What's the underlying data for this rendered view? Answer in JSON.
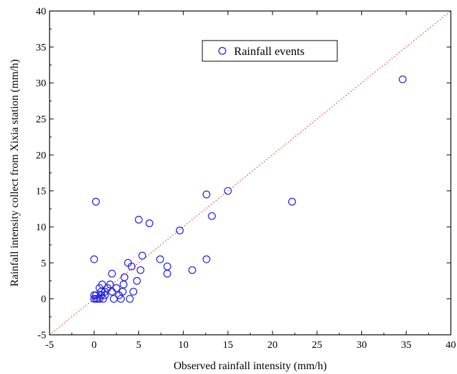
{
  "chart_data": {
    "type": "scatter",
    "title": "",
    "xlabel": "Observed rainfall intensity (mm/h)",
    "ylabel": "Rainfall intensity collect from Xixia station (mm/h)",
    "xlim": [
      -5,
      40
    ],
    "ylim": [
      -5,
      40
    ],
    "xticks": [
      -5,
      0,
      5,
      10,
      15,
      20,
      25,
      30,
      35,
      40
    ],
    "yticks": [
      -5,
      0,
      5,
      10,
      15,
      20,
      25,
      30,
      35,
      40
    ],
    "grid": false,
    "legend_position": "top-center",
    "reference_line": {
      "style": "dotted",
      "color": "#e03030",
      "from": [
        -5,
        -5
      ],
      "to": [
        40,
        40
      ]
    },
    "marker_color": "#1a1ae6",
    "series": [
      {
        "name": "Rainfall events",
        "points": [
          [
            0.0,
            0.0
          ],
          [
            0.2,
            0.0
          ],
          [
            0.0,
            0.5
          ],
          [
            0.2,
            0.5
          ],
          [
            0.4,
            0.0
          ],
          [
            0.6,
            0.0
          ],
          [
            0.8,
            0.5
          ],
          [
            0.8,
            1.0
          ],
          [
            1.0,
            0.0
          ],
          [
            1.2,
            0.5
          ],
          [
            1.2,
            1.0
          ],
          [
            0.6,
            1.5
          ],
          [
            0.9,
            2.0
          ],
          [
            1.5,
            1.5
          ],
          [
            1.8,
            2.0
          ],
          [
            2.0,
            1.0
          ],
          [
            2.0,
            3.5
          ],
          [
            2.2,
            0.0
          ],
          [
            2.5,
            1.5
          ],
          [
            2.8,
            0.5
          ],
          [
            3.0,
            0.0
          ],
          [
            3.2,
            1.0
          ],
          [
            3.3,
            2.0
          ],
          [
            3.4,
            3.0
          ],
          [
            3.8,
            5.0
          ],
          [
            4.0,
            0.0
          ],
          [
            4.2,
            4.5
          ],
          [
            4.4,
            1.0
          ],
          [
            4.8,
            2.5
          ],
          [
            5.2,
            4.0
          ],
          [
            5.4,
            6.0
          ],
          [
            0.0,
            5.5
          ],
          [
            0.2,
            13.5
          ],
          [
            5.0,
            11.0
          ],
          [
            6.2,
            10.5
          ],
          [
            7.4,
            5.5
          ],
          [
            8.2,
            4.5
          ],
          [
            8.2,
            3.5
          ],
          [
            9.6,
            9.5
          ],
          [
            11.0,
            4.0
          ],
          [
            12.6,
            5.5
          ],
          [
            12.6,
            14.5
          ],
          [
            13.2,
            11.5
          ],
          [
            15.0,
            15.0
          ],
          [
            22.2,
            13.5
          ],
          [
            34.6,
            30.5
          ]
        ]
      }
    ]
  }
}
